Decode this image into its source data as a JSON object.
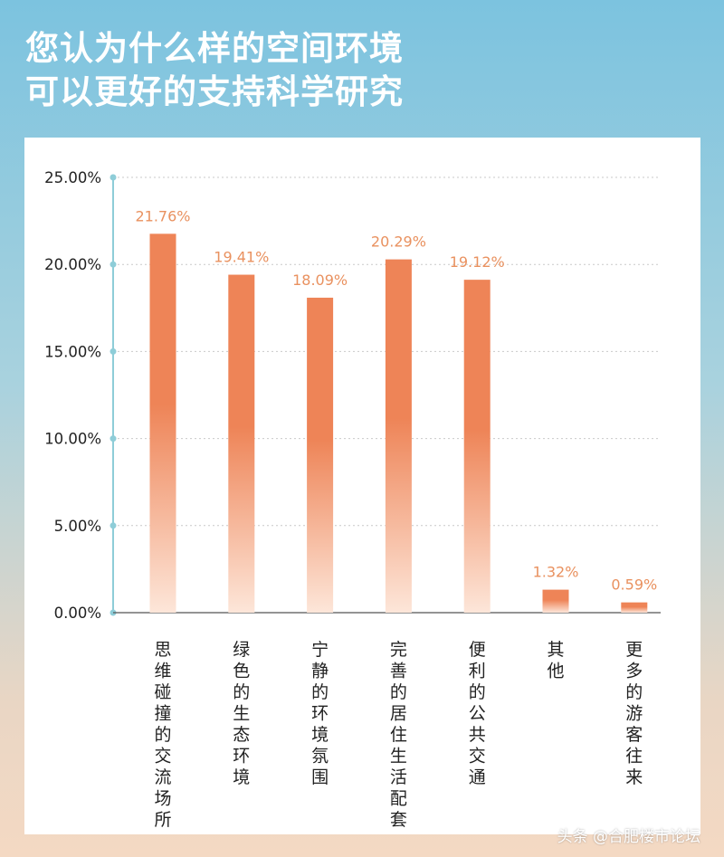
{
  "title_lines": [
    "您认为什么样的空间环境",
    "可以更好的支持科学研究"
  ],
  "watermark": "头条 @合肥楼市论坛",
  "colors": {
    "bar_top": "#ee8457",
    "bar_bottom": "#fde6d9",
    "value_label": "#e9915f",
    "axis": "#8ecdd8",
    "grid": "#c9c9c9"
  },
  "chart_data": {
    "type": "bar",
    "categories": [
      "思维碰撞的交流场所",
      "绿色的生态环境",
      "宁静的环境氛围",
      "完善的居住生活配套",
      "便利的公共交通",
      "其他",
      "更多的游客往来"
    ],
    "values": [
      21.76,
      19.41,
      18.09,
      20.29,
      19.12,
      1.32,
      0.59
    ],
    "value_labels": [
      "21.76%",
      "19.41%",
      "18.09%",
      "20.29%",
      "19.12%",
      "1.32%",
      "0.59%"
    ],
    "yticks": [
      0,
      5,
      10,
      15,
      20,
      25
    ],
    "ytick_labels": [
      "0.00%",
      "5.00%",
      "10.00%",
      "15.00%",
      "20.00%",
      "25.00%"
    ],
    "ylim": [
      0,
      25
    ],
    "grid": true
  }
}
